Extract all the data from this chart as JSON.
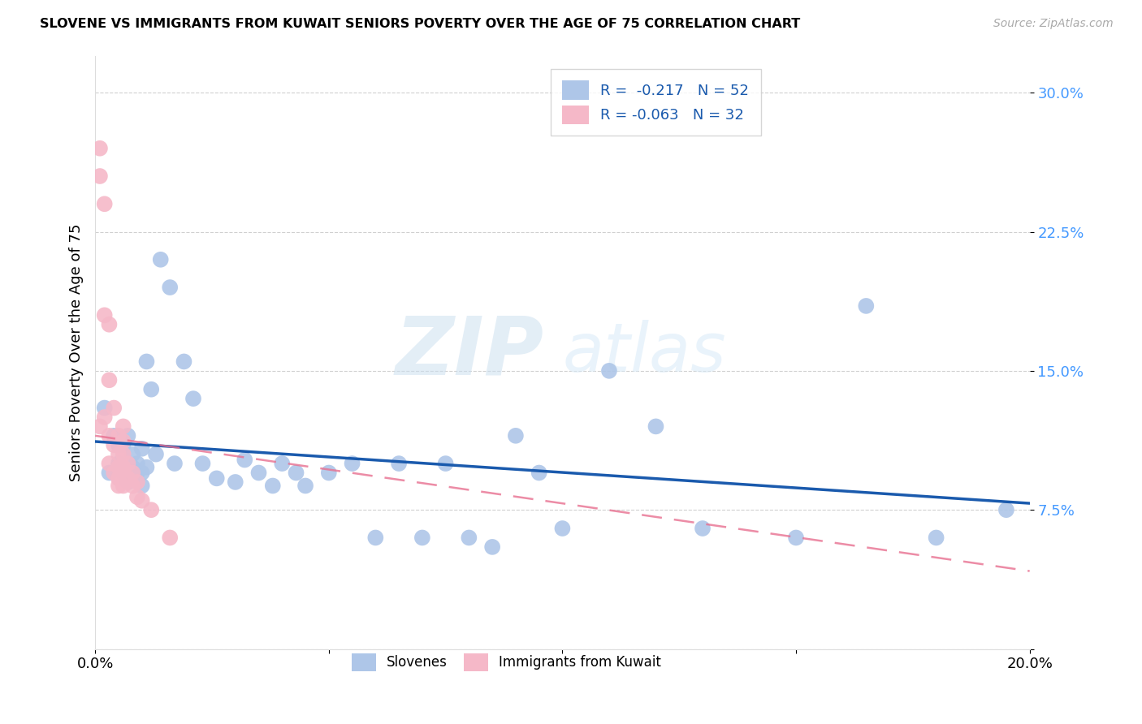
{
  "title": "SLOVENE VS IMMIGRANTS FROM KUWAIT SENIORS POVERTY OVER THE AGE OF 75 CORRELATION CHART",
  "source": "Source: ZipAtlas.com",
  "ylabel": "Seniors Poverty Over the Age of 75",
  "xlim": [
    0.0,
    0.2
  ],
  "ylim": [
    0.0,
    0.32
  ],
  "yticks": [
    0.0,
    0.075,
    0.15,
    0.225,
    0.3
  ],
  "ytick_labels": [
    "",
    "7.5%",
    "15.0%",
    "22.5%",
    "30.0%"
  ],
  "legend_blue_r": "R =  -0.217",
  "legend_blue_n": "N = 52",
  "legend_pink_r": "R = -0.063",
  "legend_pink_n": "N = 32",
  "blue_color": "#aec6e8",
  "pink_color": "#f5b8c8",
  "blue_line_color": "#1a5aad",
  "pink_line_color": "#e87090",
  "watermark_zip": "ZIP",
  "watermark_atlas": "atlas",
  "slovene_x": [
    0.002,
    0.003,
    0.004,
    0.005,
    0.005,
    0.006,
    0.006,
    0.007,
    0.007,
    0.008,
    0.008,
    0.009,
    0.009,
    0.01,
    0.01,
    0.01,
    0.011,
    0.011,
    0.012,
    0.013,
    0.014,
    0.016,
    0.017,
    0.019,
    0.021,
    0.023,
    0.026,
    0.03,
    0.032,
    0.035,
    0.038,
    0.04,
    0.043,
    0.045,
    0.05,
    0.055,
    0.06,
    0.065,
    0.07,
    0.075,
    0.08,
    0.085,
    0.09,
    0.095,
    0.1,
    0.11,
    0.12,
    0.13,
    0.15,
    0.165,
    0.18,
    0.195
  ],
  "slovene_y": [
    0.13,
    0.095,
    0.115,
    0.11,
    0.1,
    0.11,
    0.095,
    0.115,
    0.09,
    0.105,
    0.098,
    0.1,
    0.095,
    0.108,
    0.095,
    0.088,
    0.155,
    0.098,
    0.14,
    0.105,
    0.21,
    0.195,
    0.1,
    0.155,
    0.135,
    0.1,
    0.092,
    0.09,
    0.102,
    0.095,
    0.088,
    0.1,
    0.095,
    0.088,
    0.095,
    0.1,
    0.06,
    0.1,
    0.06,
    0.1,
    0.06,
    0.055,
    0.115,
    0.095,
    0.065,
    0.15,
    0.12,
    0.065,
    0.06,
    0.185,
    0.06,
    0.075
  ],
  "kuwait_x": [
    0.001,
    0.001,
    0.001,
    0.002,
    0.002,
    0.002,
    0.003,
    0.003,
    0.003,
    0.003,
    0.004,
    0.004,
    0.004,
    0.005,
    0.005,
    0.005,
    0.005,
    0.005,
    0.006,
    0.006,
    0.006,
    0.006,
    0.006,
    0.007,
    0.007,
    0.008,
    0.008,
    0.009,
    0.009,
    0.01,
    0.012,
    0.016
  ],
  "kuwait_y": [
    0.27,
    0.255,
    0.12,
    0.24,
    0.18,
    0.125,
    0.175,
    0.145,
    0.115,
    0.1,
    0.13,
    0.11,
    0.095,
    0.115,
    0.105,
    0.098,
    0.092,
    0.088,
    0.12,
    0.112,
    0.105,
    0.098,
    0.088,
    0.1,
    0.092,
    0.095,
    0.088,
    0.09,
    0.082,
    0.08,
    0.075,
    0.06
  ]
}
